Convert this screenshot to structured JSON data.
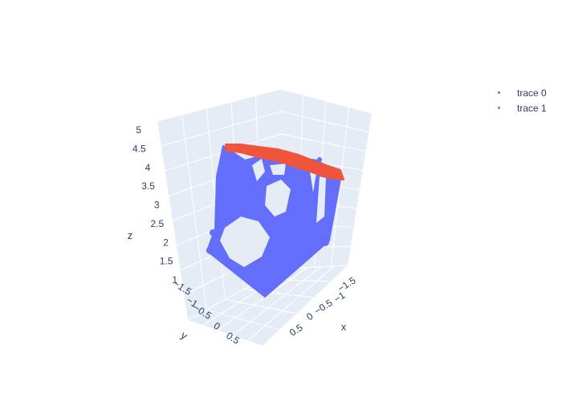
{
  "chart_data": {
    "type": "scatter3d",
    "title": "",
    "axes": {
      "x": {
        "title": "x",
        "ticks": [
          "−1.5",
          "−1",
          "−0.5",
          "0",
          "0.5"
        ]
      },
      "y": {
        "title": "y",
        "ticks": [
          "−1.5",
          "−1",
          "−0.5",
          "0",
          "0.5"
        ]
      },
      "z": {
        "title": "z",
        "range": [
          1,
          5
        ],
        "ticks": [
          "1",
          "1.5",
          "2",
          "2.5",
          "3",
          "3.5",
          "4",
          "4.5",
          "5"
        ]
      }
    },
    "legend_placement": "top-right",
    "series": [
      {
        "name": "trace 0",
        "color": "#636efa"
      },
      {
        "name": "trace 1",
        "color": "#ef553b"
      }
    ]
  },
  "colors": {
    "background": "#e5ecf6",
    "grid": "#ffffff",
    "text": "#2a3f5f"
  }
}
